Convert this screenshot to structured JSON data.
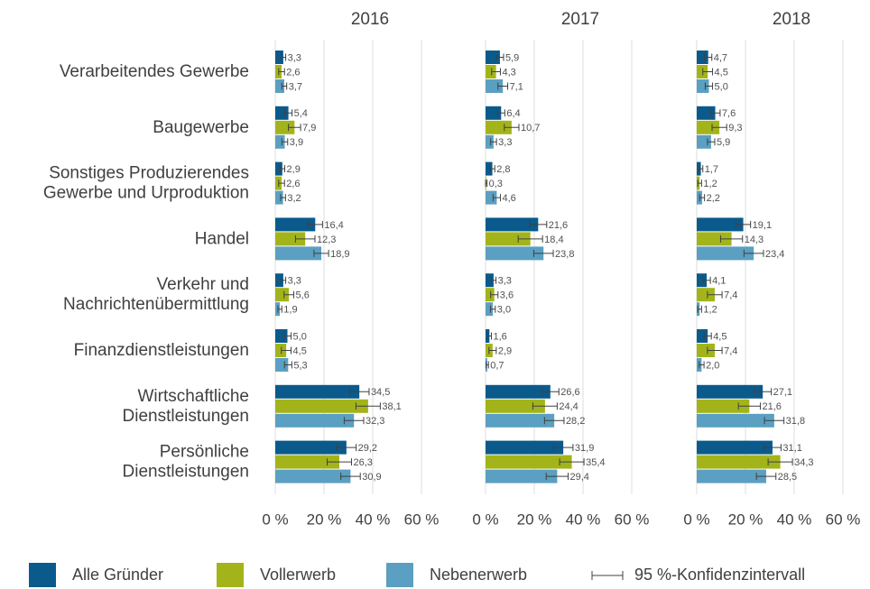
{
  "chart_data": {
    "type": "bar",
    "orientation": "horizontal",
    "categories": [
      "Verarbeitendes Gewerbe",
      "Baugewerbe",
      "Sonstiges Produzierendes\nGewerbe und Urproduktion",
      "Handel",
      "Verkehr und\nNachrichtenübermittlung",
      "Finanzdienstleistungen",
      "Wirtschaftliche\nDienstleistungen",
      "Persönliche\nDienstleistungen"
    ],
    "series": [
      {
        "name": "Alle Gründer",
        "color": "#0b5a8c"
      },
      {
        "name": "Vollerwerb",
        "color": "#a3b41a"
      },
      {
        "name": "Nebenerwerb",
        "color": "#5b9fc2"
      }
    ],
    "error_label": "95 %-Konfidenzintervall",
    "xlim": [
      0,
      60
    ],
    "xticks": [
      {
        "value": 0,
        "label": "0 %"
      },
      {
        "value": 20,
        "label": "20 %"
      },
      {
        "value": 40,
        "label": "40 %"
      },
      {
        "value": 60,
        "label": "60 %"
      }
    ],
    "grid": true,
    "panels": [
      {
        "title": "2016",
        "series": [
          {
            "values": [
              3.3,
              5.4,
              2.9,
              16.4,
              3.3,
              5.0,
              34.5,
              29.2
            ],
            "value_labels": [
              "3,3",
              "5,4",
              "2,9",
              "16,4",
              "3,3",
              "5,0",
              "34,5",
              "29,2"
            ],
            "errors": [
              1.0,
              1.5,
              1.0,
              3.0,
              1.0,
              1.5,
              4.0,
              4.0
            ]
          },
          {
            "values": [
              2.6,
              7.9,
              2.6,
              12.3,
              5.6,
              4.5,
              38.1,
              26.3
            ],
            "value_labels": [
              "2,6",
              "7,9",
              "2,6",
              "12,3",
              "5,6",
              "4,5",
              "38,1",
              "26,3"
            ],
            "errors": [
              1.2,
              2.5,
              1.2,
              4.0,
              2.0,
              2.0,
              5.0,
              5.0
            ]
          },
          {
            "values": [
              3.7,
              3.9,
              3.2,
              18.9,
              1.9,
              5.3,
              32.3,
              30.9
            ],
            "value_labels": [
              "3,7",
              "3,9",
              "3,2",
              "18,9",
              "1,9",
              "5,3",
              "32,3",
              "30,9"
            ],
            "errors": [
              1.0,
              1.2,
              1.0,
              3.0,
              0.8,
              1.5,
              4.0,
              4.0
            ]
          }
        ]
      },
      {
        "title": "2017",
        "series": [
          {
            "values": [
              5.9,
              6.4,
              2.8,
              21.6,
              3.3,
              1.6,
              26.6,
              31.9
            ],
            "value_labels": [
              "5,9",
              "6,4",
              "2,8",
              "21,6",
              "3,3",
              "1,6",
              "26,6",
              "31,9"
            ],
            "errors": [
              1.5,
              1.5,
              1.0,
              3.5,
              1.0,
              0.8,
              3.5,
              4.0
            ]
          },
          {
            "values": [
              4.3,
              10.7,
              0.3,
              18.4,
              3.6,
              2.9,
              24.4,
              35.4
            ],
            "value_labels": [
              "4,3",
              "10,7",
              "0,3",
              "18,4",
              "3,6",
              "2,9",
              "24,4",
              "35,4"
            ],
            "errors": [
              1.8,
              3.0,
              0.3,
              5.0,
              1.5,
              1.5,
              5.0,
              5.0
            ]
          },
          {
            "values": [
              7.1,
              3.3,
              4.6,
              23.8,
              3.0,
              0.7,
              28.2,
              29.4
            ],
            "value_labels": [
              "7,1",
              "3,3",
              "4,6",
              "23,8",
              "3,0",
              "0,7",
              "28,2",
              "29,4"
            ],
            "errors": [
              2.0,
              1.2,
              1.5,
              4.0,
              1.0,
              0.5,
              4.0,
              4.5
            ]
          }
        ]
      },
      {
        "title": "2018",
        "series": [
          {
            "values": [
              4.7,
              7.6,
              1.7,
              19.1,
              4.1,
              4.5,
              27.1,
              31.1
            ],
            "value_labels": [
              "4,7",
              "7,6",
              "1,7",
              "19,1",
              "4,1",
              "4,5",
              "27,1",
              "31,1"
            ],
            "errors": [
              1.5,
              2.0,
              0.8,
              3.0,
              1.5,
              1.5,
              3.5,
              3.5
            ]
          },
          {
            "values": [
              4.5,
              9.3,
              1.2,
              14.3,
              7.4,
              7.4,
              21.6,
              34.3
            ],
            "value_labels": [
              "4,5",
              "9,3",
              "1,2",
              "14,3",
              "7,4",
              "7,4",
              "21,6",
              "34,3"
            ],
            "errors": [
              2.0,
              3.0,
              0.8,
              4.5,
              3.0,
              3.0,
              4.5,
              5.0
            ]
          },
          {
            "values": [
              5.0,
              5.9,
              2.2,
              23.4,
              1.2,
              2.0,
              31.8,
              28.5
            ],
            "value_labels": [
              "5,0",
              "5,9",
              "2,2",
              "23,4",
              "1,2",
              "2,0",
              "31,8",
              "28,5"
            ],
            "errors": [
              1.5,
              1.5,
              1.0,
              4.0,
              0.8,
              1.0,
              4.0,
              4.0
            ]
          }
        ]
      }
    ]
  }
}
